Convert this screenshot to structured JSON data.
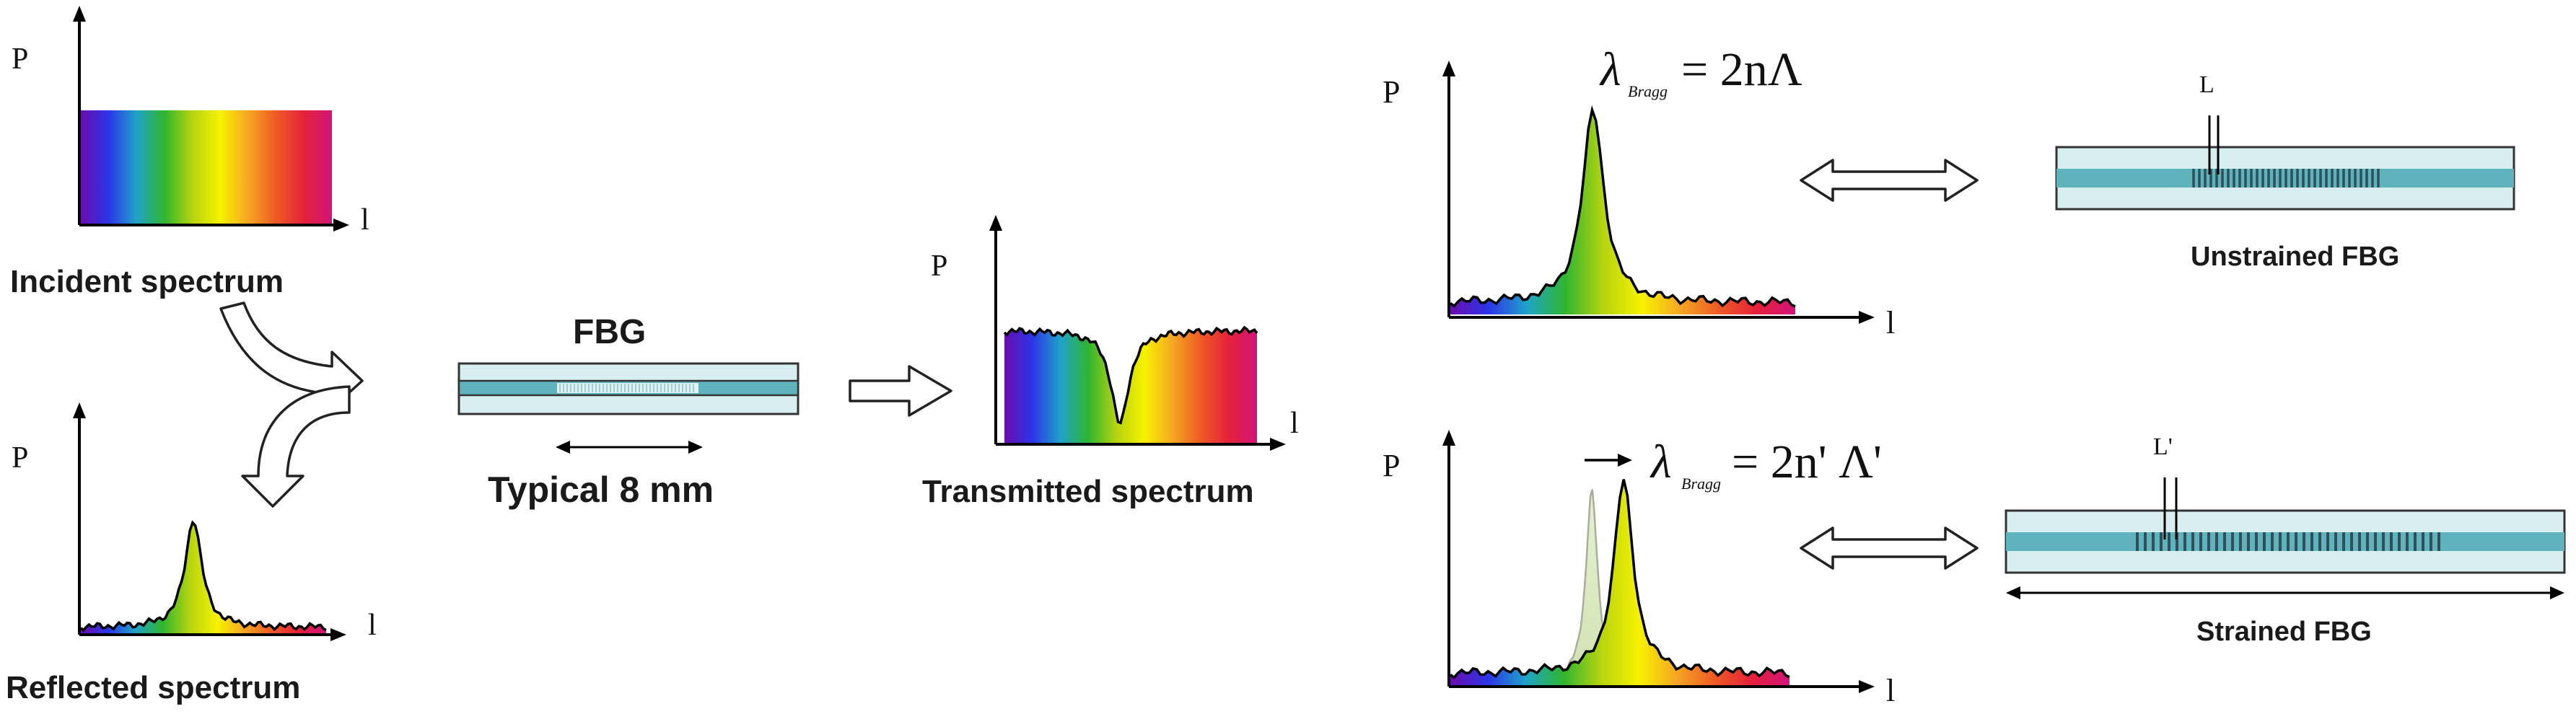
{
  "incident": {
    "axis_y": "P",
    "axis_x": "l",
    "label": "Incident spectrum"
  },
  "reflected": {
    "axis_y": "P",
    "axis_x": "l",
    "label": "Reflected spectrum"
  },
  "fbg": {
    "title": "FBG",
    "length_label": "Typical 8 mm"
  },
  "transmitted": {
    "axis_y": "P",
    "axis_x": "l",
    "label": "Transmitted spectrum"
  },
  "unstrained": {
    "axis_y": "P",
    "axis_x": "l",
    "formula_lambda": "λ",
    "formula_sub": "Bragg",
    "formula_rhs": "= 2nΛ",
    "period_label": "L",
    "label": "Unstrained FBG"
  },
  "strained": {
    "axis_y": "P",
    "axis_x": "l",
    "formula_lambda": "λ",
    "formula_sub": "Bragg",
    "formula_rhs": "= 2n' Λ'",
    "period_label": "L'",
    "label": "Strained FBG"
  },
  "colors": {
    "spectrum": [
      "#6a0dad",
      "#2b35e8",
      "#1fa3c9",
      "#2fb52f",
      "#b6d40f",
      "#f7f200",
      "#f5a623",
      "#ef5a24",
      "#e5213a",
      "#d1147a"
    ],
    "fiber_cladding": "#d7eef0",
    "fiber_core": "#5fb3bd",
    "grating_fine": "#eef8f8",
    "grating_dark": "#2f4f5a",
    "ghost_peak": "#d6e6b8"
  }
}
